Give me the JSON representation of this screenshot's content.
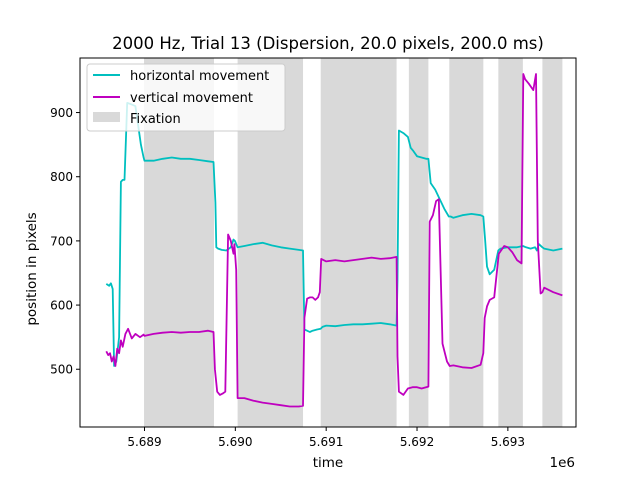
{
  "chart_data": {
    "type": "line",
    "title": "2000 Hz, Trial 13 (Dispersion, 20.0 pixels, 200.0 ms)",
    "xlabel": "time",
    "ylabel": "position in pixels",
    "x_offset_label": "1e6",
    "xlim": [
      5688290,
      5693750
    ],
    "ylim": [
      410,
      985
    ],
    "x_ticks": [
      {
        "value": 5689000,
        "label": "5.689"
      },
      {
        "value": 5690000,
        "label": "5.690"
      },
      {
        "value": 5691000,
        "label": "5.691"
      },
      {
        "value": 5692000,
        "label": "5.692"
      },
      {
        "value": 5693000,
        "label": "5.693"
      }
    ],
    "y_ticks": [
      {
        "value": 500,
        "label": "500"
      },
      {
        "value": 600,
        "label": "600"
      },
      {
        "value": 700,
        "label": "700"
      },
      {
        "value": 800,
        "label": "800"
      },
      {
        "value": 900,
        "label": "900"
      }
    ],
    "grid": false,
    "legend_position": "top-left",
    "fixations": {
      "name": "Fixation",
      "color": "#d9d9d9",
      "intervals": [
        [
          5688995,
          5689765
        ],
        [
          5690025,
          5690745
        ],
        [
          5690940,
          5691775
        ],
        [
          5691910,
          5692125
        ],
        [
          5692355,
          5692730
        ],
        [
          5692895,
          5693165
        ],
        [
          5693380,
          5693600
        ]
      ]
    },
    "series": [
      {
        "name": "horizontal movement",
        "color": "#00bfbf",
        "x": [
          5688580,
          5688610,
          5688630,
          5688650,
          5688665,
          5688690,
          5688720,
          5688740,
          5688760,
          5688780,
          5688810,
          5688850,
          5688900,
          5688960,
          5688990,
          5689000,
          5689100,
          5689200,
          5689300,
          5689400,
          5689500,
          5689600,
          5689700,
          5689760,
          5689780,
          5689790,
          5689810,
          5689850,
          5689900,
          5689950,
          5689980,
          5689995,
          5690025,
          5690100,
          5690200,
          5690300,
          5690400,
          5690500,
          5690600,
          5690700,
          5690745,
          5690760,
          5690790,
          5690820,
          5690850,
          5690900,
          5690940,
          5690960,
          5691000,
          5691100,
          5691200,
          5691300,
          5691400,
          5691500,
          5691600,
          5691700,
          5691775,
          5691785,
          5691800,
          5691850,
          5691900,
          5691930,
          5691960,
          5692000,
          5692100,
          5692125,
          5692150,
          5692200,
          5692300,
          5692350,
          5692370,
          5692400,
          5692500,
          5692600,
          5692700,
          5692730,
          5692750,
          5692770,
          5692800,
          5692850,
          5692895,
          5692920,
          5693000,
          5693100,
          5693165,
          5693200,
          5693250,
          5693300,
          5693320,
          5693340,
          5693380,
          5693400,
          5693500,
          5693600
        ],
        "y": [
          633,
          630,
          634,
          625,
          505,
          512,
          550,
          792,
          795,
          795,
          915,
          913,
          910,
          850,
          830,
          825,
          825,
          828,
          830,
          828,
          828,
          826,
          824,
          823,
          760,
          690,
          688,
          686,
          685,
          690,
          702,
          700,
          690,
          692,
          695,
          697,
          693,
          690,
          688,
          686,
          685,
          562,
          560,
          558,
          560,
          562,
          563,
          566,
          568,
          567,
          569,
          570,
          570,
          571,
          572,
          570,
          568,
          640,
          872,
          868,
          862,
          845,
          840,
          832,
          828,
          828,
          790,
          780,
          750,
          738,
          738,
          736,
          740,
          742,
          740,
          738,
          700,
          660,
          648,
          655,
          685,
          688,
          690,
          690,
          692,
          690,
          688,
          690,
          685,
          695,
          690,
          688,
          685,
          688
        ]
      },
      {
        "name": "vertical movement",
        "color": "#bf00bf",
        "x": [
          5688580,
          5688600,
          5688620,
          5688640,
          5688660,
          5688680,
          5688700,
          5688720,
          5688740,
          5688760,
          5688790,
          5688820,
          5688860,
          5688900,
          5688950,
          5688990,
          5689000,
          5689100,
          5689200,
          5689300,
          5689400,
          5689500,
          5689600,
          5689700,
          5689760,
          5689775,
          5689800,
          5689830,
          5689860,
          5689890,
          5689920,
          5689950,
          5689980,
          5689990,
          5690010,
          5690025,
          5690100,
          5690200,
          5690300,
          5690400,
          5690500,
          5690600,
          5690700,
          5690745,
          5690760,
          5690790,
          5690820,
          5690850,
          5690880,
          5690910,
          5690930,
          5690945,
          5691000,
          5691100,
          5691200,
          5691300,
          5691400,
          5691500,
          5691600,
          5691700,
          5691775,
          5691785,
          5691800,
          5691850,
          5691900,
          5691950,
          5692000,
          5692050,
          5692100,
          5692125,
          5692140,
          5692175,
          5692210,
          5692240,
          5692280,
          5692330,
          5692360,
          5692400,
          5692500,
          5692600,
          5692700,
          5692730,
          5692745,
          5692770,
          5692800,
          5692850,
          5692900,
          5692960,
          5693000,
          5693050,
          5693100,
          5693150,
          5693170,
          5693190,
          5693230,
          5693280,
          5693310,
          5693330,
          5693360,
          5693380,
          5693400,
          5693500,
          5693600
        ],
        "y": [
          528,
          522,
          525,
          512,
          520,
          505,
          532,
          525,
          545,
          535,
          555,
          563,
          548,
          555,
          550,
          554,
          552,
          555,
          557,
          558,
          557,
          558,
          558,
          560,
          558,
          500,
          465,
          460,
          462,
          465,
          710,
          700,
          680,
          695,
          655,
          455,
          455,
          451,
          448,
          446,
          444,
          442,
          442,
          443,
          580,
          610,
          612,
          612,
          608,
          612,
          620,
          672,
          668,
          670,
          668,
          670,
          672,
          674,
          672,
          673,
          675,
          520,
          465,
          460,
          470,
          472,
          472,
          470,
          472,
          473,
          730,
          740,
          762,
          765,
          540,
          512,
          505,
          506,
          503,
          502,
          507,
          525,
          580,
          598,
          608,
          612,
          680,
          692,
          690,
          682,
          670,
          665,
          960,
          952,
          945,
          935,
          960,
          700,
          618,
          620,
          627,
          620,
          615
        ]
      }
    ]
  }
}
